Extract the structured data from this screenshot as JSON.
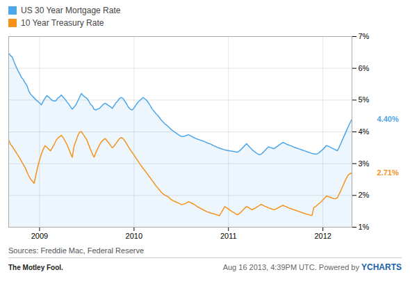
{
  "chart_data": {
    "type": "line",
    "legend": "top",
    "grid": true,
    "caption": "Sources: Freddie Mac, Federal Reserve",
    "footer": [
      "The Motley Fool.",
      "Aug 16 2013, 4:39PM UTC. Powered by ",
      "YCHARTS"
    ],
    "ylim": [
      1,
      7
    ],
    "yticks": [
      {
        "value": 1,
        "label": "1%"
      },
      {
        "value": 2,
        "label": "2%"
      },
      {
        "value": 3,
        "label": "3%"
      },
      {
        "value": 4,
        "label": "4%"
      },
      {
        "value": 5,
        "label": "5%"
      },
      {
        "value": 6,
        "label": "6%"
      },
      {
        "value": 7,
        "label": "7%"
      }
    ],
    "annotations": [
      {
        "text": "4.40%",
        "y": 4.4,
        "color": "#4da6e8"
      },
      {
        "text": "2.71%",
        "y": 2.71,
        "color": "#f5921e"
      }
    ],
    "categories": [
      null,
      null,
      null,
      null,
      null,
      null,
      null,
      null,
      null,
      null,
      null,
      null,
      null,
      null,
      null,
      null,
      null,
      "2009",
      null,
      null,
      null,
      null,
      null,
      null,
      null,
      null,
      null,
      null,
      null,
      null,
      null,
      null,
      null,
      null,
      null,
      null,
      null,
      null,
      null,
      null,
      null,
      null,
      null,
      null,
      null,
      null,
      null,
      null,
      null,
      null,
      null,
      null,
      null,
      null,
      null,
      null,
      null,
      null,
      null,
      null,
      null,
      null,
      null,
      null,
      null,
      null,
      null,
      null,
      null,
      "2010",
      null,
      null,
      null,
      null,
      null,
      null,
      null,
      null,
      null,
      null,
      null,
      null,
      null,
      null,
      null,
      null,
      null,
      null,
      null,
      null,
      null,
      null,
      null,
      null,
      null,
      null,
      null,
      null,
      null,
      null,
      null,
      null,
      null,
      null,
      null,
      null,
      null,
      null,
      null,
      null,
      null,
      null,
      null,
      null,
      null,
      null,
      null,
      null,
      null,
      null,
      null,
      "2011",
      null,
      null,
      null,
      null,
      null,
      null,
      null,
      null,
      null,
      null,
      null,
      null,
      null,
      null,
      null,
      null,
      null,
      null,
      null,
      null,
      null,
      null,
      null,
      null,
      null,
      null,
      null,
      null,
      null,
      null,
      null,
      null,
      null,
      null,
      null,
      null,
      null,
      null,
      null,
      null,
      null,
      null,
      null,
      null,
      null,
      null,
      null,
      null,
      null,
      null,
      null,
      "2012",
      null,
      null,
      null,
      null,
      null,
      null,
      null,
      null,
      null,
      null,
      null,
      null,
      null,
      null,
      null,
      null
    ],
    "series": [
      {
        "name": "US 30 Year Mortgage Rate",
        "color": "#4da6e8",
        "values": [
          6.47,
          6.4,
          6.35,
          6.2,
          6.06,
          5.94,
          5.83,
          5.72,
          5.65,
          5.54,
          5.47,
          5.29,
          5.19,
          5.13,
          5.07,
          5.01,
          4.96,
          4.91,
          4.85,
          4.96,
          5.06,
          5.14,
          5.1,
          5.04,
          4.99,
          4.97,
          4.98,
          5.06,
          5.1,
          5.16,
          5.09,
          5.03,
          4.95,
          4.88,
          4.79,
          4.71,
          4.78,
          4.85,
          4.97,
          5.09,
          5.21,
          5.14,
          5.1,
          5.06,
          4.98,
          4.87,
          4.82,
          4.71,
          4.69,
          4.72,
          4.74,
          4.8,
          4.86,
          4.9,
          4.87,
          4.83,
          4.79,
          4.74,
          4.82,
          4.91,
          4.97,
          5.05,
          5.08,
          5.05,
          4.96,
          4.87,
          4.77,
          4.71,
          4.69,
          4.75,
          4.84,
          4.92,
          4.98,
          5.03,
          5.08,
          5.04,
          4.99,
          4.91,
          4.82,
          4.72,
          4.65,
          4.58,
          4.52,
          4.45,
          4.37,
          4.31,
          4.25,
          4.21,
          4.16,
          4.1,
          4.05,
          4.01,
          3.97,
          3.93,
          3.89,
          3.86,
          3.85,
          3.87,
          3.89,
          3.91,
          3.88,
          3.85,
          3.82,
          3.79,
          3.77,
          3.75,
          3.73,
          3.71,
          3.69,
          3.66,
          3.64,
          3.62,
          3.59,
          3.56,
          3.54,
          3.51,
          3.49,
          3.47,
          3.45,
          3.43,
          3.42,
          3.41,
          3.4,
          3.39,
          3.38,
          3.37,
          3.36,
          3.4,
          3.45,
          3.51,
          3.57,
          3.63,
          3.56,
          3.5,
          3.44,
          3.39,
          3.35,
          3.31,
          3.28,
          3.3,
          3.35,
          3.41,
          3.47,
          3.53,
          3.51,
          3.49,
          3.47,
          3.51,
          3.55,
          3.59,
          3.63,
          3.67,
          3.64,
          3.61,
          3.59,
          3.57,
          3.55,
          3.52,
          3.5,
          3.48,
          3.46,
          3.44,
          3.42,
          3.4,
          3.38,
          3.36,
          3.34,
          3.32,
          3.31,
          3.3,
          3.31,
          3.35,
          3.4,
          3.45,
          3.51,
          3.57,
          3.55,
          3.52,
          3.49,
          3.46,
          3.43,
          3.41,
          3.52,
          3.65,
          3.78,
          3.91,
          4.04,
          4.17,
          4.29,
          4.4
        ]
      },
      {
        "name": "10 Year Treasury Rate",
        "color": "#f5921e",
        "values": [
          3.74,
          3.61,
          3.54,
          3.45,
          3.36,
          3.27,
          3.18,
          3.08,
          2.98,
          2.88,
          2.75,
          2.62,
          2.52,
          2.45,
          2.38,
          2.65,
          2.9,
          3.12,
          3.3,
          3.45,
          3.56,
          3.52,
          3.46,
          3.4,
          3.5,
          3.6,
          3.72,
          3.8,
          3.85,
          3.89,
          3.82,
          3.72,
          3.61,
          3.48,
          3.33,
          3.2,
          3.55,
          3.71,
          3.87,
          3.99,
          4.01,
          3.92,
          3.84,
          3.75,
          3.6,
          3.45,
          3.32,
          3.2,
          3.35,
          3.47,
          3.59,
          3.68,
          3.74,
          3.79,
          3.73,
          3.66,
          3.58,
          3.5,
          3.55,
          3.63,
          3.71,
          3.79,
          3.82,
          3.79,
          3.71,
          3.62,
          3.52,
          3.43,
          3.35,
          3.27,
          3.18,
          3.1,
          3.01,
          2.93,
          2.85,
          2.78,
          2.7,
          2.62,
          2.55,
          2.47,
          2.39,
          2.31,
          2.24,
          2.17,
          2.1,
          2.05,
          2.01,
          1.98,
          1.95,
          1.89,
          1.85,
          1.82,
          1.8,
          1.77,
          1.75,
          1.71,
          1.72,
          1.74,
          1.77,
          1.8,
          1.78,
          1.75,
          1.72,
          1.68,
          1.64,
          1.61,
          1.58,
          1.55,
          1.52,
          1.49,
          1.47,
          1.45,
          1.43,
          1.42,
          1.4,
          1.38,
          1.36,
          1.45,
          1.55,
          1.65,
          1.61,
          1.57,
          1.53,
          1.49,
          1.46,
          1.42,
          1.39,
          1.43,
          1.48,
          1.54,
          1.6,
          1.65,
          1.62,
          1.58,
          1.55,
          1.58,
          1.61,
          1.65,
          1.68,
          1.72,
          1.69,
          1.66,
          1.64,
          1.61,
          1.59,
          1.57,
          1.55,
          1.57,
          1.6,
          1.63,
          1.66,
          1.69,
          1.66,
          1.64,
          1.61,
          1.59,
          1.57,
          1.55,
          1.53,
          1.51,
          1.49,
          1.47,
          1.45,
          1.43,
          1.41,
          1.4,
          1.38,
          1.37,
          1.62,
          1.65,
          1.7,
          1.75,
          1.8,
          1.86,
          1.92,
          1.98,
          1.96,
          1.94,
          1.92,
          1.9,
          1.9,
          1.93,
          2.05,
          2.17,
          2.3,
          2.43,
          2.55,
          2.65,
          2.68,
          2.71
        ]
      }
    ]
  }
}
